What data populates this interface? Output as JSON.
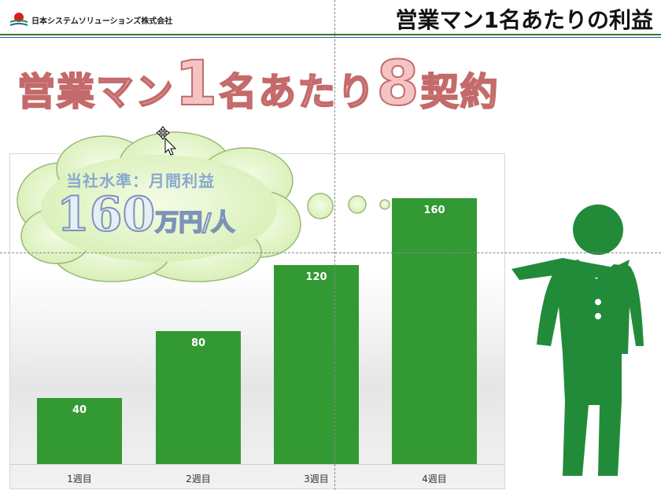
{
  "header": {
    "company": "日本システムソリューションズ株式会社",
    "title": "営業マン1名あたりの利益"
  },
  "headline": {
    "part1": "営業マン",
    "num1": "1",
    "part2": "名あたり",
    "num2": "8",
    "part3": "契約"
  },
  "thought": {
    "line1": "当社水準：月間利益",
    "number": "160",
    "unit": "万円/人"
  },
  "chart_data": {
    "type": "bar",
    "categories": [
      "1週目",
      "2週目",
      "3週目",
      "4週目"
    ],
    "values": [
      40,
      80,
      120,
      160
    ],
    "data_labels": [
      "40",
      "80",
      "120",
      "160"
    ],
    "ylim": [
      0,
      180
    ],
    "color": "#339933"
  },
  "colors": {
    "accent": "#339933",
    "person": "#228b3a",
    "cloud": "#e2f5c6"
  }
}
